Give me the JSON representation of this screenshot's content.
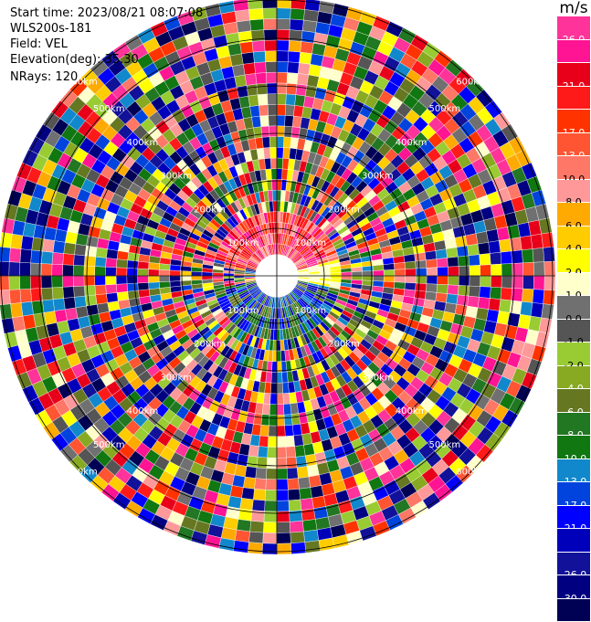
{
  "info": {
    "start_time": "Start time: 2023/08/21 08:07:08",
    "station": "WLS200s-181",
    "field": "Field: VEL",
    "elevation": "Elevation(deg): 35.30",
    "nrays": "NRays: 120"
  },
  "colorbar": {
    "unit": "m/s",
    "colors": [
      "#ff3399",
      "#ff1493",
      "#e8001a",
      "#ff1a1a",
      "#ff3300",
      "#ff5533",
      "#ff7766",
      "#ff9999",
      "#ffaa00",
      "#ffcc00",
      "#ffff00",
      "#ffffcc",
      "#707070",
      "#555555",
      "#99cc33",
      "#88aa22",
      "#667722",
      "#227722",
      "#117711",
      "#1188cc",
      "#0044dd",
      "#0000ff",
      "#0000bb",
      "#111199",
      "#000080",
      "#000055"
    ],
    "ticks": [
      "26.0",
      "21.0",
      "17.0",
      "13.0",
      "10.0",
      "8.0",
      "6.0",
      "4.0",
      "2.0",
      "1.0",
      "0.0",
      "-1.0",
      "-2.0",
      "-4.0",
      "-6.0",
      "-8.0",
      "-10.0",
      "-13.0",
      "-17.0",
      "-21.0",
      "-26.0",
      "-30.0"
    ],
    "tick_after_cell": [
      1,
      3,
      5,
      6,
      7,
      8,
      9,
      10,
      11,
      12,
      13,
      14,
      15,
      16,
      17,
      18,
      19,
      20,
      21,
      22,
      24,
      25
    ]
  },
  "chart_data": {
    "type": "heatmap",
    "projection": "polar (PPI)",
    "field": "VEL",
    "units": "m/s",
    "elevation_deg": 35.3,
    "n_rays": 120,
    "range_ring_labels": [
      "100km",
      "200km",
      "300km",
      "400km",
      "500km",
      "600km"
    ],
    "color_scale": {
      "min": -30.0,
      "max": 26.0,
      "tick_labels": [
        "26.0",
        "21.0",
        "17.0",
        "13.0",
        "10.0",
        "8.0",
        "6.0",
        "4.0",
        "2.0",
        "1.0",
        "0.0",
        "-1.0",
        "-2.0",
        "-4.0",
        "-6.0",
        "-8.0",
        "-10.0",
        "-13.0",
        "-17.0",
        "-21.0",
        "-26.0",
        "-30.0"
      ]
    },
    "near_field_pattern": [
      {
        "sector": "north",
        "velocity_sign": "positive",
        "colors": "red/orange"
      },
      {
        "sector": "east-northeast",
        "velocity_sign": "positive",
        "colors": "yellow"
      },
      {
        "sector": "south",
        "velocity_sign": "negative",
        "colors": "green/blue"
      }
    ],
    "far_field": "noise (random velocities across full color scale)"
  }
}
